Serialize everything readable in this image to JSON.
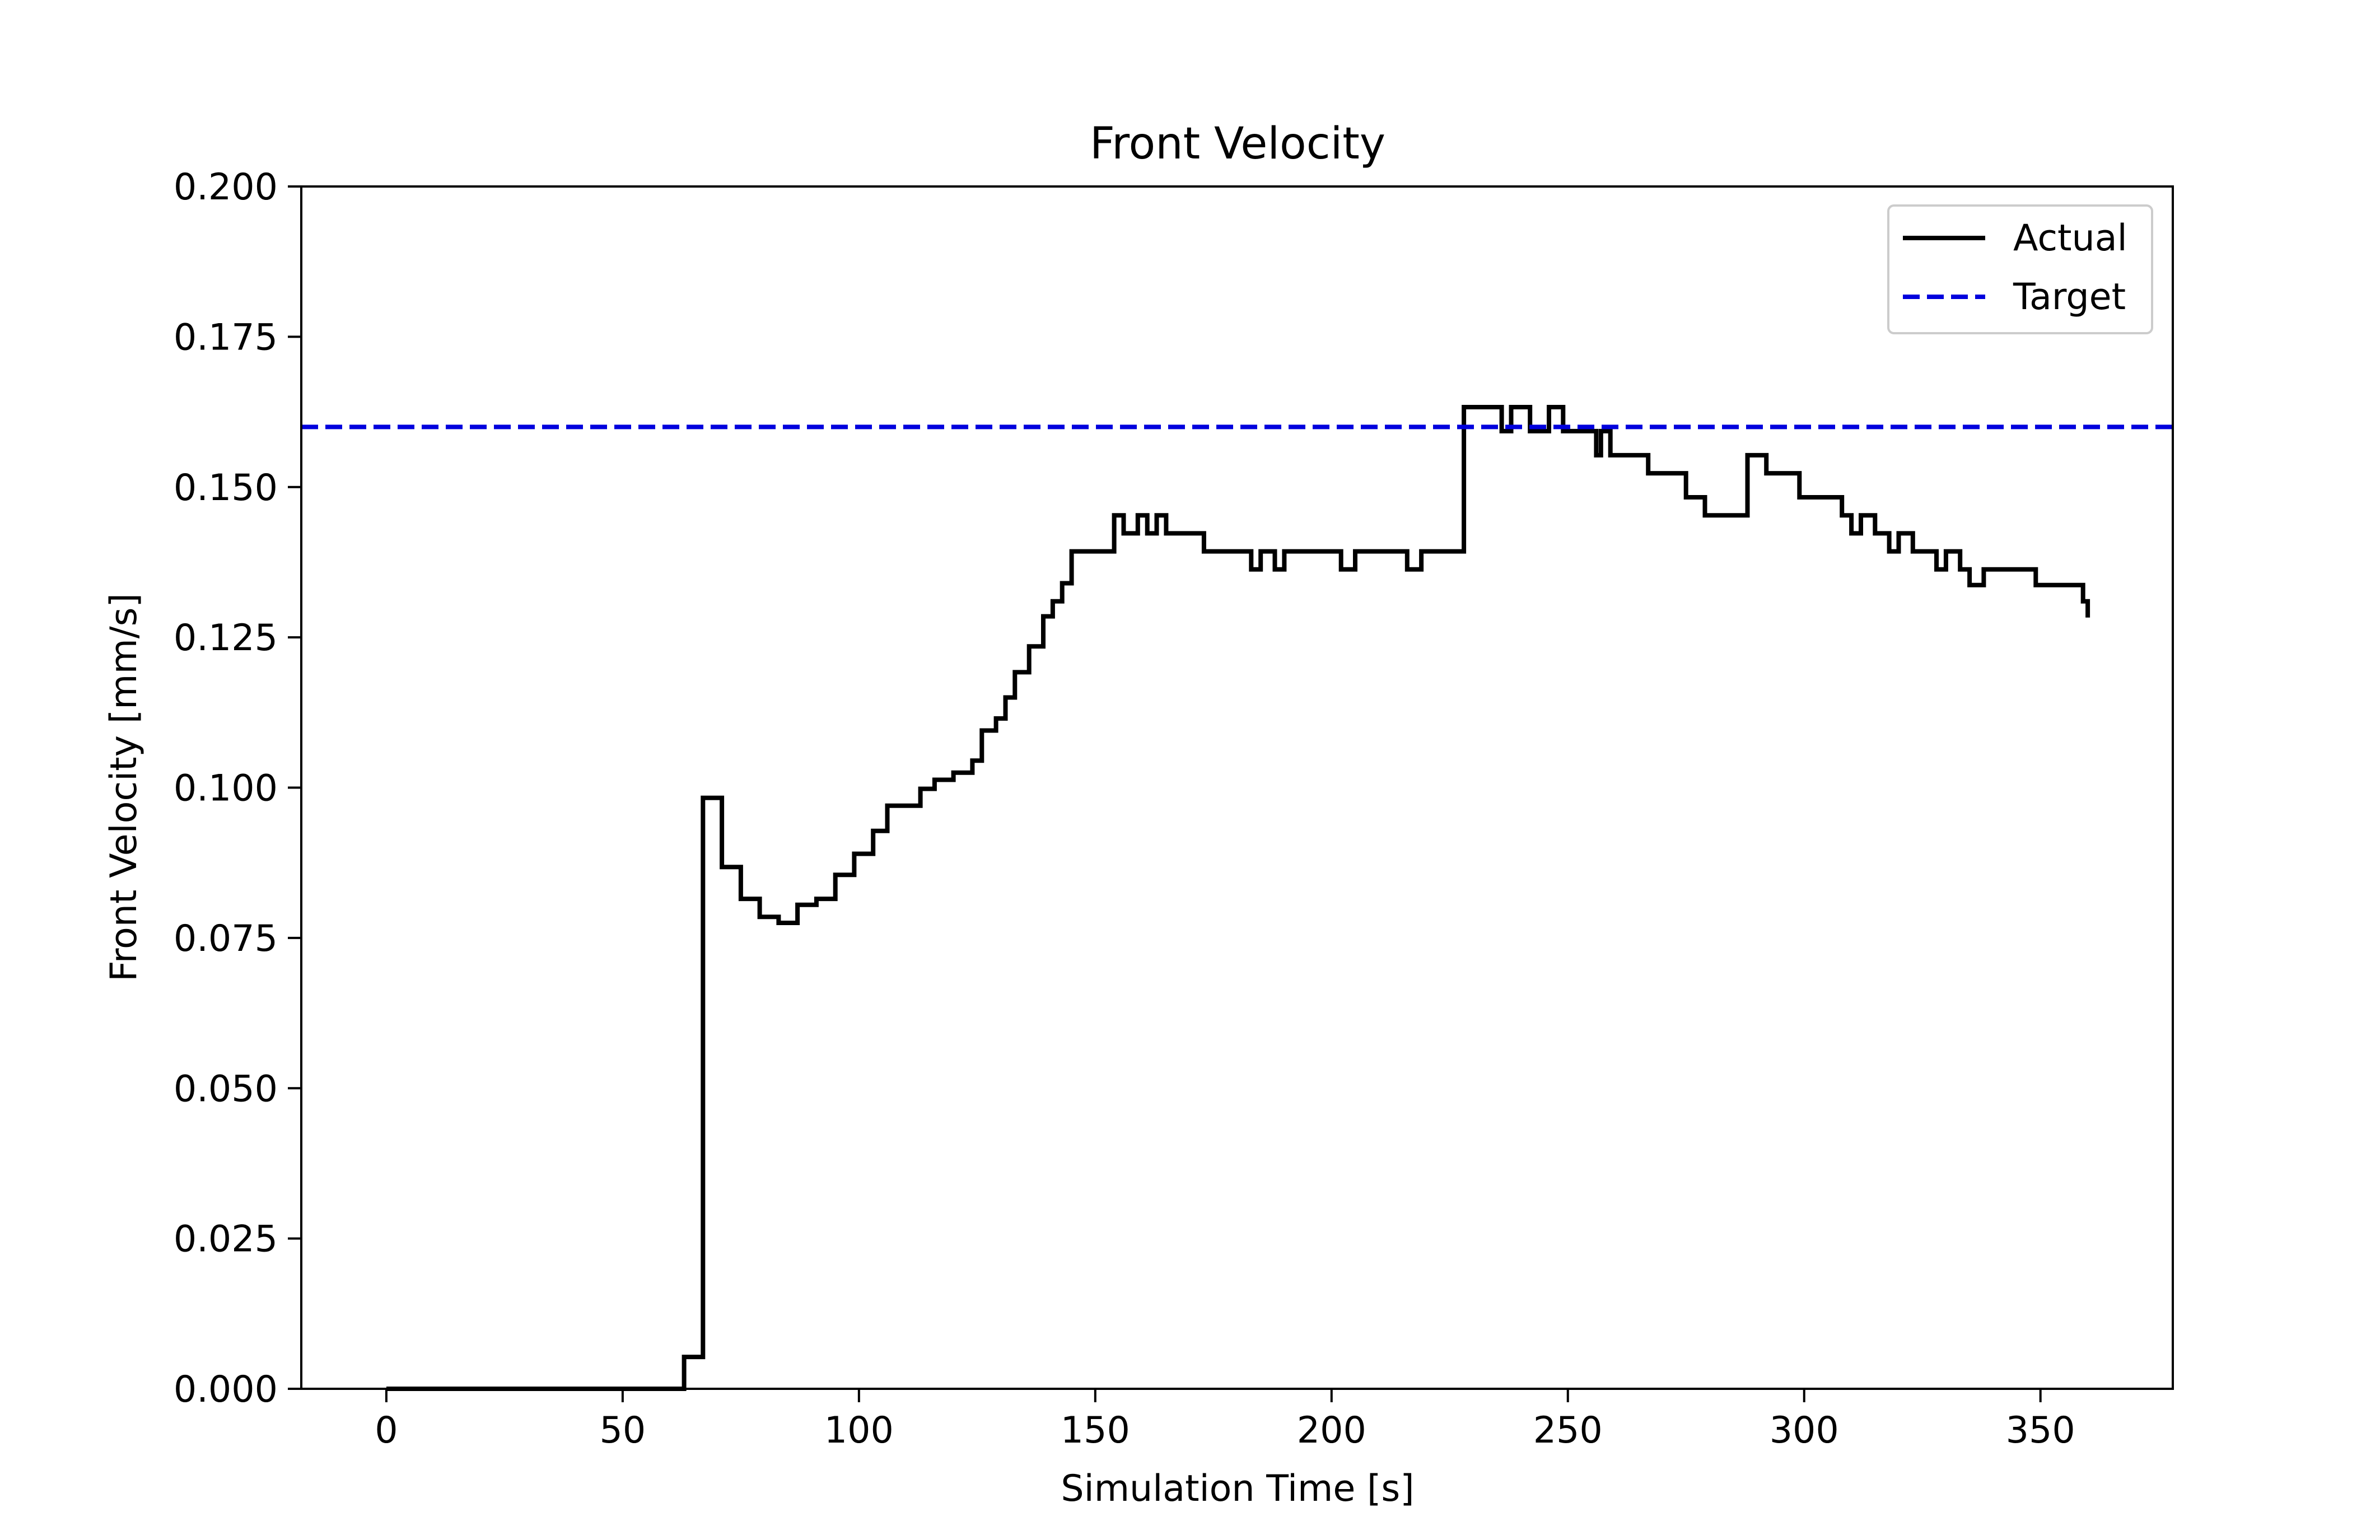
{
  "chart_data": {
    "type": "line",
    "title": "Front Velocity",
    "xlabel": "Simulation Time [s]",
    "ylabel": "Front Velocity [mm/s]",
    "xlim": [
      -18,
      378
    ],
    "ylim": [
      0.0,
      0.2
    ],
    "xticks": [
      0,
      50,
      100,
      150,
      200,
      250,
      300,
      350
    ],
    "xtick_labels": [
      "0",
      "50",
      "100",
      "150",
      "200",
      "250",
      "300",
      "350"
    ],
    "yticks": [
      0.0,
      0.025,
      0.05,
      0.075,
      0.1,
      0.125,
      0.15,
      0.175,
      0.2
    ],
    "ytick_labels": [
      "0.000",
      "0.025",
      "0.050",
      "0.075",
      "0.100",
      "0.125",
      "0.150",
      "0.175",
      "0.200"
    ],
    "grid": false,
    "legend_position": "top-right",
    "series": [
      {
        "name": "Actual",
        "color": "#000000",
        "style": "solid",
        "drawstyle": "steps",
        "x": [
          0,
          63,
          67,
          71,
          75,
          79,
          83,
          87,
          91,
          95,
          99,
          103,
          106,
          113,
          116,
          120,
          124,
          126,
          129,
          131,
          133,
          136,
          139,
          141,
          143,
          145,
          147,
          148,
          154,
          156,
          159,
          161,
          163,
          165,
          173,
          183,
          185,
          188,
          190,
          202,
          205,
          216,
          219,
          228,
          236,
          238,
          242,
          246,
          249,
          256,
          257,
          259,
          267,
          275,
          279,
          288,
          292,
          299,
          308,
          310,
          312,
          315,
          318,
          320,
          323,
          328,
          330,
          333,
          335,
          338,
          349,
          359,
          360
        ],
        "y": [
          0.0,
          0.0053,
          0.0983,
          0.0868,
          0.0815,
          0.0785,
          0.0775,
          0.0805,
          0.0815,
          0.0855,
          0.089,
          0.0928,
          0.097,
          0.0998,
          0.1013,
          0.1025,
          0.1045,
          0.1095,
          0.1115,
          0.115,
          0.1192,
          0.1235,
          0.1285,
          0.131,
          0.134,
          0.1393,
          0.1393,
          0.1393,
          0.1453,
          0.1423,
          0.1453,
          0.1423,
          0.1453,
          0.1423,
          0.1393,
          0.1363,
          0.1393,
          0.1363,
          0.1393,
          0.1363,
          0.1393,
          0.1363,
          0.1393,
          0.1633,
          0.1593,
          0.1633,
          0.1593,
          0.1633,
          0.1593,
          0.1553,
          0.1593,
          0.1553,
          0.1523,
          0.1483,
          0.1453,
          0.1553,
          0.1523,
          0.1483,
          0.1453,
          0.1423,
          0.1453,
          0.1423,
          0.1393,
          0.1423,
          0.1393,
          0.1363,
          0.1393,
          0.1363,
          0.1337,
          0.1363,
          0.1337,
          0.131,
          0.1283
        ]
      },
      {
        "name": "Target",
        "color": "#0000dd",
        "style": "dashed",
        "x": [
          -18,
          378
        ],
        "y": [
          0.16,
          0.16
        ]
      }
    ]
  }
}
